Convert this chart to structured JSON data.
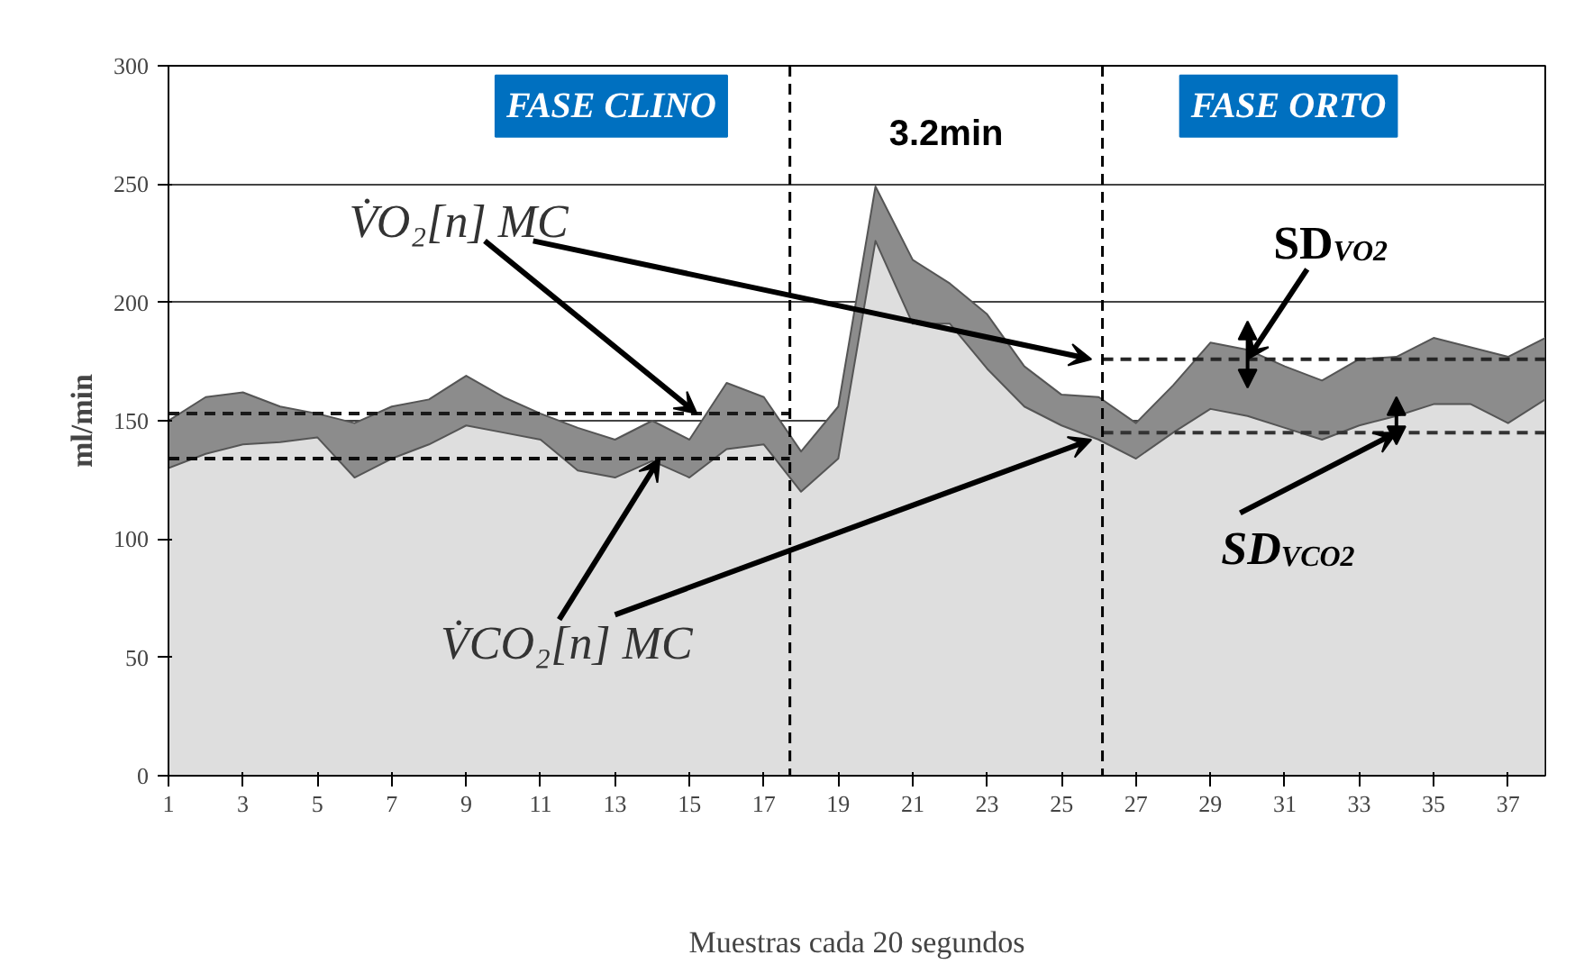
{
  "chart_data": {
    "type": "area",
    "xlabel": "Muestras cada 20 segundos",
    "ylabel": "ml/min",
    "x": [
      1,
      2,
      3,
      4,
      5,
      6,
      7,
      8,
      9,
      10,
      11,
      12,
      13,
      14,
      15,
      16,
      17,
      18,
      19,
      20,
      21,
      22,
      23,
      24,
      25,
      26,
      27,
      28,
      29,
      30,
      31,
      32,
      33,
      34,
      35,
      36,
      37,
      38
    ],
    "series": [
      {
        "color": "#8c8c8c",
        "values": [
          150,
          160,
          162,
          156,
          153,
          149,
          156,
          159,
          169,
          160,
          153,
          147,
          142,
          150,
          142,
          166,
          160,
          137,
          156,
          249,
          218,
          208,
          195,
          173,
          161,
          160,
          149,
          165,
          183,
          180,
          173,
          167,
          176,
          177,
          185,
          181,
          177,
          185
        ]
      },
      {
        "color": "#dedede",
        "values": [
          130,
          136,
          140,
          141,
          143,
          126,
          134,
          140,
          148,
          145,
          142,
          129,
          126,
          133,
          126,
          138,
          140,
          120,
          134,
          226,
          191,
          191,
          172,
          156,
          148,
          142,
          134,
          145,
          155,
          152,
          147,
          142,
          148,
          152,
          157,
          157,
          149,
          159
        ]
      },
      {
        "type": "line",
        "color": "#1a1a1a",
        "line_style": "dashed",
        "x": [
          1,
          17.7
        ],
        "values": [
          153,
          153
        ]
      },
      {
        "type": "line",
        "color": "#0d0d0d",
        "line_style": "dashed",
        "x": [
          1,
          17.7
        ],
        "values": [
          134,
          134
        ]
      },
      {
        "type": "line",
        "color": "#262626",
        "line_style": "dashed",
        "x": [
          26.1,
          38
        ],
        "values": [
          176,
          176
        ]
      },
      {
        "type": "line",
        "color": "#333333",
        "line_style": "dashed",
        "x": [
          26.1,
          38
        ],
        "values": [
          145,
          145
        ]
      }
    ],
    "ref_lines": [
      {
        "axis": "x",
        "value": 17.7,
        "line_style": "dashed",
        "color": "#000000"
      },
      {
        "axis": "x",
        "value": 26.1,
        "line_style": "dashed",
        "color": "#000000"
      }
    ],
    "annotations": [
      "FASE CLINO",
      "3.2min",
      "FASE ORTO",
      {
        "text": "V̇O₂[n] MC",
        "x": 15.2,
        "y": 153
      },
      {
        "text": "V̇CO₂[n] MC",
        "x": 14.2,
        "y": 134
      },
      {
        "text": "SD$_{VO2}$",
        "x": 30,
        "y": 176
      },
      {
        "text": "SD$_{VCO2}$",
        "x": 34,
        "y": 145
      }
    ],
    "xlim": [
      1,
      38
    ],
    "xticks": [
      1,
      3,
      5,
      7,
      9,
      11,
      13,
      15,
      17,
      19,
      21,
      23,
      25,
      27,
      29,
      31,
      33,
      35,
      37
    ],
    "ylim": [
      0,
      300
    ],
    "yticks": [
      0,
      50,
      100,
      150,
      200,
      250,
      300
    ],
    "grid": "y"
  }
}
